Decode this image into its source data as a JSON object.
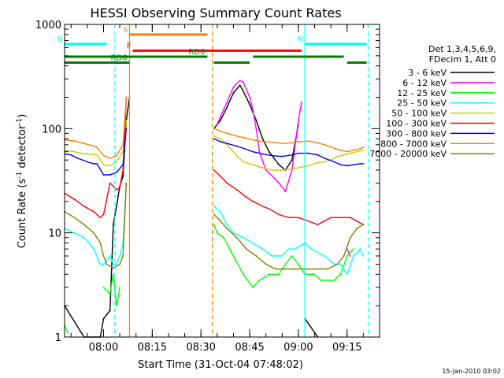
{
  "chart_data": {
    "type": "line",
    "title": "HESSI Observing Summary Count Rates",
    "xlabel": "Start Time (31-Oct-04 07:48:02)",
    "ylabel_main": "Count Rate (s",
    "ylabel_sup1": "-1",
    "ylabel_mid": " detector",
    "ylabel_sup2": "-1",
    "ylabel_end": ")",
    "x_unit": "minutes after 07:48:02",
    "x_range": [
      0,
      97
    ],
    "ylim": [
      1,
      1000
    ],
    "yscale": "log",
    "y_ticks": [
      {
        "v": 1,
        "label": "1"
      },
      {
        "v": 10,
        "label": "10"
      },
      {
        "v": 100,
        "label": "100"
      },
      {
        "v": 1000,
        "label": "1000"
      }
    ],
    "x_ticks": [
      {
        "v": 12,
        "label": "08:00"
      },
      {
        "v": 27,
        "label": "08:15"
      },
      {
        "v": 42,
        "label": "08:30"
      },
      {
        "v": 57,
        "label": "08:45"
      },
      {
        "v": 72,
        "label": "09:00"
      },
      {
        "v": 87,
        "label": "09:15"
      }
    ],
    "legend_header": [
      "Det 1,3,4,5,6,9,",
      "FDecim 1, Att 0"
    ],
    "series": [
      {
        "name": "3 - 6 keV",
        "color": "#000000",
        "points": [
          [
            0,
            2
          ],
          [
            6,
            1
          ],
          [
            11,
            1
          ],
          [
            12,
            1.5
          ],
          [
            14,
            1.8
          ],
          [
            15,
            12
          ],
          [
            16,
            18
          ],
          [
            17,
            28
          ],
          [
            18,
            35
          ],
          [
            19,
            120
          ],
          [
            20,
            200
          ],
          [
            21,
            null
          ],
          [
            45,
            null
          ],
          [
            46,
            100
          ],
          [
            48,
            120
          ],
          [
            50,
            160
          ],
          [
            52,
            220
          ],
          [
            54,
            260
          ],
          [
            55,
            230
          ],
          [
            57,
            170
          ],
          [
            59,
            120
          ],
          [
            61,
            80
          ],
          [
            63,
            60
          ],
          [
            66,
            45
          ],
          [
            68,
            40
          ],
          [
            70,
            50
          ],
          [
            72,
            110
          ],
          [
            73,
            null
          ],
          [
            74,
            1.5
          ],
          [
            78,
            1
          ],
          [
            80,
            null
          ]
        ]
      },
      {
        "name": "6 - 12 keV",
        "color": "#ff00ff",
        "points": [
          [
            47,
            110
          ],
          [
            48,
            130
          ],
          [
            50,
            180
          ],
          [
            52,
            250
          ],
          [
            54,
            290
          ],
          [
            55,
            280
          ],
          [
            57,
            200
          ],
          [
            58,
            150
          ],
          [
            59,
            100
          ],
          [
            60,
            60
          ],
          [
            62,
            40
          ],
          [
            64,
            35
          ],
          [
            66,
            30
          ],
          [
            68,
            25
          ],
          [
            70,
            40
          ],
          [
            72,
            120
          ],
          [
            73,
            180
          ],
          [
            74,
            null
          ],
          [
            87,
            7
          ],
          [
            88,
            6
          ],
          [
            89,
            null
          ]
        ]
      },
      {
        "name": "12 - 25 keV",
        "color": "#00ff00",
        "points": [
          [
            0,
            1.3
          ],
          [
            1,
            1.1
          ],
          [
            3,
            null
          ],
          [
            12,
            3
          ],
          [
            14,
            2.6
          ],
          [
            15,
            4
          ],
          [
            16,
            2
          ],
          [
            17,
            3
          ],
          [
            18,
            null
          ],
          [
            46,
            12
          ],
          [
            47,
            10
          ],
          [
            49,
            9
          ],
          [
            52,
            6
          ],
          [
            55,
            4
          ],
          [
            58,
            3
          ],
          [
            60,
            3.5
          ],
          [
            63,
            4
          ],
          [
            66,
            4
          ],
          [
            68,
            5
          ],
          [
            70,
            6
          ],
          [
            72,
            5
          ],
          [
            74,
            4
          ],
          [
            77,
            4
          ],
          [
            79,
            3.5
          ],
          [
            81,
            3.5
          ],
          [
            83,
            3.5
          ],
          [
            85,
            4
          ],
          [
            87,
            6
          ],
          [
            89,
            7
          ],
          [
            91,
            null
          ]
        ]
      },
      {
        "name": "25 - 50 keV",
        "color": "#00ffff",
        "points": [
          [
            0,
            11
          ],
          [
            3,
            10
          ],
          [
            6,
            9
          ],
          [
            9,
            7
          ],
          [
            11,
            5
          ],
          [
            12,
            5
          ],
          [
            14,
            6
          ],
          [
            15,
            5
          ],
          [
            16,
            5
          ],
          [
            17,
            6
          ],
          [
            18,
            8
          ],
          [
            19,
            30
          ],
          [
            20,
            null
          ],
          [
            46,
            18
          ],
          [
            48,
            16
          ],
          [
            50,
            12
          ],
          [
            52,
            10
          ],
          [
            55,
            9
          ],
          [
            58,
            8
          ],
          [
            61,
            7
          ],
          [
            64,
            6
          ],
          [
            67,
            6
          ],
          [
            69,
            7
          ],
          [
            71,
            7
          ],
          [
            74,
            8
          ],
          [
            76,
            7
          ],
          [
            80,
            6
          ],
          [
            83,
            5
          ],
          [
            85,
            5
          ],
          [
            87,
            4
          ],
          [
            89,
            6
          ],
          [
            91,
            7
          ],
          [
            92,
            6
          ]
        ]
      },
      {
        "name": "50 - 100 keV",
        "color": "#cccc00",
        "points": [
          [
            0,
            62
          ],
          [
            3,
            60
          ],
          [
            5,
            58
          ],
          [
            10,
            56
          ],
          [
            12,
            45
          ],
          [
            14,
            44
          ],
          [
            16,
            48
          ],
          [
            18,
            60
          ],
          [
            19,
            120
          ],
          [
            20,
            null
          ],
          [
            46,
            85
          ],
          [
            48,
            80
          ],
          [
            50,
            70
          ],
          [
            53,
            55
          ],
          [
            55,
            48
          ],
          [
            58,
            45
          ],
          [
            61,
            42
          ],
          [
            64,
            40
          ],
          [
            67,
            40
          ],
          [
            70,
            41
          ],
          [
            72,
            42
          ],
          [
            75,
            44
          ],
          [
            78,
            47
          ],
          [
            80,
            48
          ],
          [
            82,
            50
          ],
          [
            84,
            54
          ],
          [
            86,
            56
          ],
          [
            88,
            58
          ],
          [
            90,
            60
          ],
          [
            92,
            62
          ]
        ]
      },
      {
        "name": "100 - 300 keV",
        "color": "#ff0000",
        "points": [
          [
            0,
            24
          ],
          [
            3,
            21
          ],
          [
            6,
            18
          ],
          [
            9,
            16
          ],
          [
            11,
            14
          ],
          [
            12,
            15
          ],
          [
            14,
            30
          ],
          [
            15,
            28
          ],
          [
            16,
            26
          ],
          [
            17,
            27
          ],
          [
            18,
            40
          ],
          [
            19,
            200
          ],
          [
            20,
            null
          ],
          [
            46,
            40
          ],
          [
            48,
            35
          ],
          [
            50,
            30
          ],
          [
            53,
            26
          ],
          [
            56,
            22
          ],
          [
            58,
            20
          ],
          [
            61,
            18
          ],
          [
            63,
            17
          ],
          [
            66,
            15
          ],
          [
            69,
            14
          ],
          [
            72,
            14
          ],
          [
            75,
            13
          ],
          [
            78,
            12
          ],
          [
            80,
            13
          ],
          [
            82,
            14
          ],
          [
            85,
            14
          ],
          [
            88,
            14
          ],
          [
            90,
            13
          ],
          [
            92,
            12
          ]
        ]
      },
      {
        "name": "300 - 800 keV",
        "color": "#0000ff",
        "points": [
          [
            0,
            57
          ],
          [
            2,
            56
          ],
          [
            4,
            52
          ],
          [
            7,
            48
          ],
          [
            9,
            46
          ],
          [
            10,
            46
          ],
          [
            12,
            36
          ],
          [
            14,
            36
          ],
          [
            16,
            38
          ],
          [
            18,
            45
          ],
          [
            19,
            100
          ],
          [
            20,
            null
          ],
          [
            46,
            80
          ],
          [
            48,
            75
          ],
          [
            50,
            72
          ],
          [
            53,
            68
          ],
          [
            55,
            65
          ],
          [
            58,
            60
          ],
          [
            61,
            57
          ],
          [
            64,
            55
          ],
          [
            67,
            54
          ],
          [
            70,
            56
          ],
          [
            72,
            58
          ],
          [
            75,
            58
          ],
          [
            78,
            56
          ],
          [
            80,
            52
          ],
          [
            83,
            48
          ],
          [
            85,
            45
          ],
          [
            87,
            44
          ],
          [
            89,
            45
          ],
          [
            91,
            46
          ],
          [
            92,
            46
          ]
        ]
      },
      {
        "name": "800 - 7000 keV",
        "color": "#ff8000",
        "points": [
          [
            0,
            78
          ],
          [
            3,
            76
          ],
          [
            6,
            72
          ],
          [
            9,
            68
          ],
          [
            10,
            66
          ],
          [
            12,
            55
          ],
          [
            14,
            52
          ],
          [
            16,
            55
          ],
          [
            18,
            70
          ],
          [
            19,
            200
          ],
          [
            20,
            null
          ],
          [
            46,
            100
          ],
          [
            48,
            95
          ],
          [
            50,
            90
          ],
          [
            53,
            85
          ],
          [
            55,
            82
          ],
          [
            58,
            78
          ],
          [
            61,
            75
          ],
          [
            64,
            74
          ],
          [
            67,
            72
          ],
          [
            70,
            73
          ],
          [
            72,
            75
          ],
          [
            75,
            76
          ],
          [
            78,
            73
          ],
          [
            80,
            70
          ],
          [
            83,
            65
          ],
          [
            85,
            62
          ],
          [
            87,
            60
          ],
          [
            89,
            62
          ],
          [
            91,
            64
          ],
          [
            92,
            66
          ]
        ]
      },
      {
        "name": "7000 - 20000 keV",
        "color": "#808000",
        "points": [
          [
            0,
            16
          ],
          [
            3,
            14
          ],
          [
            6,
            12
          ],
          [
            9,
            10
          ],
          [
            11,
            8
          ],
          [
            12,
            6
          ],
          [
            13,
            5
          ],
          [
            15,
            4.6
          ],
          [
            17,
            5
          ],
          [
            18,
            6
          ],
          [
            19,
            30
          ],
          [
            20,
            null
          ],
          [
            46,
            15
          ],
          [
            48,
            13
          ],
          [
            50,
            11
          ],
          [
            53,
            9
          ],
          [
            56,
            7
          ],
          [
            59,
            6
          ],
          [
            62,
            5
          ],
          [
            65,
            4.5
          ],
          [
            68,
            4.5
          ],
          [
            71,
            4.5
          ],
          [
            73,
            4.5
          ],
          [
            75,
            4.5
          ],
          [
            78,
            4.5
          ],
          [
            81,
            4.5
          ],
          [
            84,
            5
          ],
          [
            86,
            6
          ],
          [
            88,
            9
          ],
          [
            90,
            11
          ],
          [
            92,
            12
          ]
        ]
      }
    ],
    "bars": [
      {
        "label": "S",
        "color": "#ff8000",
        "x0": 20,
        "x1": 44,
        "y": 800
      },
      {
        "label": "N",
        "color": "#00ffff",
        "x0": 0,
        "x1": 13,
        "y": 650
      },
      {
        "label": "N",
        "color": "#00ffff",
        "x0": 74,
        "x1": 93,
        "y": 650
      },
      {
        "label": "F",
        "color": "#ff0000",
        "x0": 21,
        "x1": 73,
        "y": 560
      },
      {
        "label": "RD0",
        "color": "#008000",
        "x0": 0,
        "x1": 44,
        "y": 490
      },
      {
        "label": "RD6",
        "color": "#008000",
        "x0": 0,
        "x1": 20,
        "y": 430
      },
      {
        "label": "",
        "color": "#008000",
        "x0": 46,
        "x1": 57,
        "y": 430
      },
      {
        "label": "",
        "color": "#008000",
        "x0": 58,
        "x1": 86,
        "y": 490
      },
      {
        "label": "",
        "color": "#008000",
        "x0": 87,
        "x1": 93,
        "y": 430
      }
    ],
    "vlines": [
      {
        "x": 15.5,
        "color": "#00ffff",
        "dash": true
      },
      {
        "x": 20,
        "color": "#ff8000",
        "dash": false
      },
      {
        "x": 45.5,
        "color": "#ff8000",
        "dash": true
      },
      {
        "x": 74,
        "color": "#00ffff",
        "dash": false
      },
      {
        "x": 93.5,
        "color": "#00ffff",
        "dash": true
      }
    ],
    "footer_date": "15-Jan-2010 03:02"
  }
}
